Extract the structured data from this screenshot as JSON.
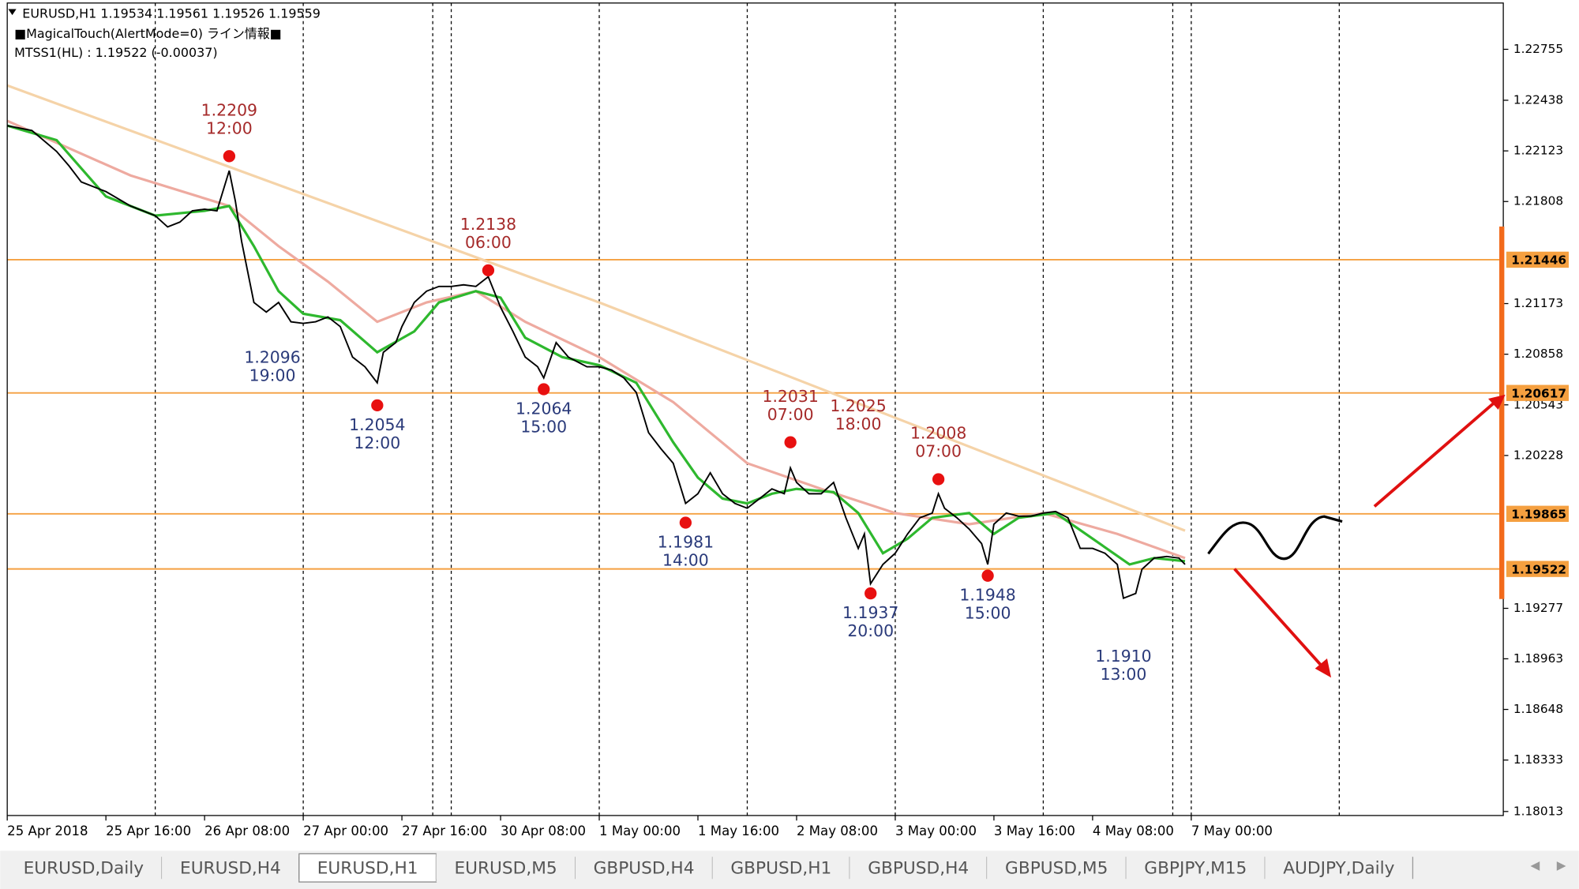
{
  "chart_data": {
    "type": "candlestick-line",
    "title": "EURUSD,H1  1.19534 1.19561 1.19526 1.19559",
    "indicators": [
      "■MagicalTouch(AlertMode=0) ライン情報■",
      "MTSS1(HL) : 1.19522 (-0.00037)"
    ],
    "xlim": [
      0,
      242.6
    ],
    "ylim": [
      1.17988,
      1.23043
    ],
    "xticks": [
      {
        "value": 0,
        "label": "25 Apr 2018"
      },
      {
        "value": 16,
        "label": "25 Apr 16:00"
      },
      {
        "value": 32,
        "label": "26 Apr 08:00"
      },
      {
        "value": 48,
        "label": "27 Apr 00:00"
      },
      {
        "value": 64,
        "label": "27 Apr 16:00"
      },
      {
        "value": 80,
        "label": "30 Apr 08:00"
      },
      {
        "value": 96,
        "label": "1 May 00:00"
      },
      {
        "value": 112,
        "label": "1 May 16:00"
      },
      {
        "value": 128,
        "label": "2 May 08:00"
      },
      {
        "value": 144,
        "label": "3 May 00:00"
      },
      {
        "value": 160,
        "label": "3 May 16:00"
      },
      {
        "value": 176,
        "label": "4 May 08:00"
      },
      {
        "value": 192,
        "label": "7 May 00:00"
      }
    ],
    "yticks": [
      1.22755,
      1.22438,
      1.22123,
      1.21808,
      1.21173,
      1.20858,
      1.20543,
      1.20228,
      1.19277,
      1.18963,
      1.18648,
      1.18333,
      1.18013
    ],
    "separators": [
      24,
      48,
      69,
      72,
      96,
      120,
      144,
      168,
      189,
      192,
      216
    ],
    "series": [
      {
        "color": "#f5d3a8",
        "x": [
          0,
          96,
          191
        ],
        "values": [
          1.2253,
          1.2118,
          1.1976
        ]
      },
      {
        "color": "#eeaaa0",
        "x": [
          0,
          20,
          36,
          44,
          52,
          60,
          68,
          76,
          84,
          96,
          108,
          120,
          132,
          144,
          156,
          168,
          180,
          191
        ],
        "values": [
          1.2231,
          1.2197,
          1.2178,
          1.2153,
          1.2131,
          1.2106,
          1.2118,
          1.2125,
          1.2106,
          1.2084,
          1.2056,
          1.2018,
          1.2002,
          1.1987,
          1.198,
          1.1987,
          1.1974,
          1.1959
        ]
      },
      {
        "color": "#2eb82e",
        "x": [
          0,
          8,
          16,
          24,
          32,
          36,
          40,
          44,
          48,
          54,
          60,
          66,
          70,
          76,
          80,
          84,
          90,
          96,
          102,
          108,
          112,
          116,
          120,
          124,
          128,
          134,
          138,
          142,
          146,
          150,
          156,
          160,
          164,
          170,
          176,
          182,
          186,
          191
        ],
        "values": [
          1.2228,
          1.2219,
          1.2184,
          1.2172,
          1.2175,
          1.2178,
          1.2153,
          1.2125,
          1.2111,
          1.2107,
          1.2087,
          1.21,
          1.2118,
          1.2125,
          1.2121,
          1.2096,
          1.2084,
          1.2079,
          1.2068,
          1.2031,
          1.2009,
          1.1996,
          1.1993,
          1.1999,
          1.2002,
          1.2,
          1.1987,
          1.1962,
          1.1971,
          1.1984,
          1.1987,
          1.1974,
          1.1984,
          1.1987,
          1.1971,
          1.1955,
          1.1959,
          1.1957
        ]
      },
      {
        "color": "#000000",
        "x": [
          0,
          4,
          8,
          10,
          12,
          16,
          20,
          24,
          26,
          28,
          30,
          32,
          34,
          36,
          37,
          38,
          40,
          42,
          44,
          46,
          48,
          50,
          52,
          54,
          56,
          58,
          60,
          61,
          63,
          64,
          66,
          68,
          70,
          72,
          74,
          76,
          78,
          80,
          82,
          84,
          86,
          87,
          89,
          91,
          94,
          96,
          98,
          100,
          102,
          104,
          106,
          108,
          110,
          112,
          114,
          116,
          118,
          120,
          122,
          124,
          126,
          127,
          128,
          130,
          132,
          134,
          136,
          138,
          139,
          140,
          142,
          144,
          146,
          148,
          150,
          151,
          152,
          154,
          156,
          158,
          159,
          160,
          162,
          164,
          166,
          168,
          170,
          172,
          174,
          176,
          178,
          180,
          181,
          183,
          184,
          186,
          188,
          190,
          191
        ],
        "values": [
          1.2228,
          1.2225,
          1.2212,
          1.2203,
          1.2193,
          1.2187,
          1.2178,
          1.2172,
          1.2165,
          1.2168,
          1.2175,
          1.2176,
          1.2175,
          1.22,
          1.2181,
          1.2156,
          1.2118,
          1.2112,
          1.2118,
          1.2106,
          1.2105,
          1.2106,
          1.2109,
          1.2103,
          1.2084,
          1.2078,
          1.2068,
          1.2087,
          1.2093,
          1.2103,
          1.2118,
          1.2125,
          1.2128,
          1.2128,
          1.2129,
          1.2128,
          1.2134,
          1.2115,
          1.21,
          1.2084,
          1.2078,
          1.2071,
          1.2093,
          1.2084,
          1.2078,
          1.2078,
          1.2076,
          1.2071,
          1.2062,
          1.2037,
          1.2027,
          1.2018,
          1.1993,
          1.1999,
          1.2012,
          1.1999,
          1.1993,
          1.199,
          1.1996,
          1.2002,
          1.1999,
          1.2015,
          1.2006,
          1.1999,
          1.1999,
          1.2006,
          1.1984,
          1.1965,
          1.1974,
          1.1943,
          1.1955,
          1.1962,
          1.1974,
          1.1984,
          1.1987,
          1.1999,
          1.199,
          1.1984,
          1.1977,
          1.1968,
          1.1955,
          1.198,
          1.1987,
          1.1985,
          1.1985,
          1.1987,
          1.1988,
          1.1984,
          1.1965,
          1.1965,
          1.1962,
          1.1955,
          1.1934,
          1.1937,
          1.1952,
          1.1959,
          1.196,
          1.1959,
          1.1955
        ]
      }
    ],
    "hlines": [
      {
        "value": 1.21446,
        "color": "#f5a040"
      },
      {
        "value": 1.20617,
        "color": "#f5a040"
      },
      {
        "value": 1.19865,
        "color": "#f5a040"
      },
      {
        "value": 1.19522,
        "color": "#f5a040"
      }
    ],
    "annotations": [
      {
        "x": 36,
        "value": 1.2209,
        "time": "12:00",
        "kind": "high",
        "marker": true
      },
      {
        "x": 43,
        "value": 1.2096,
        "time": "19:00",
        "kind": "low",
        "marker": false
      },
      {
        "x": 60,
        "value": 1.2054,
        "time": "12:00",
        "kind": "low",
        "marker": true
      },
      {
        "x": 78,
        "value": 1.2138,
        "time": "06:00",
        "kind": "high",
        "marker": true
      },
      {
        "x": 87,
        "value": 1.2064,
        "time": "15:00",
        "kind": "low",
        "marker": true
      },
      {
        "x": 110,
        "value": 1.1981,
        "time": "14:00",
        "kind": "low",
        "marker": true
      },
      {
        "x": 127,
        "value": 1.2031,
        "time": "07:00",
        "kind": "high",
        "marker": true
      },
      {
        "x": 138,
        "value": 1.2025,
        "time": "18:00",
        "kind": "high",
        "marker": false
      },
      {
        "x": 140,
        "value": 1.1937,
        "time": "20:00",
        "kind": "low",
        "marker": true
      },
      {
        "x": 151,
        "value": 1.2008,
        "time": "07:00",
        "kind": "high",
        "marker": true
      },
      {
        "x": 159,
        "value": 1.1948,
        "time": "15:00",
        "kind": "low",
        "marker": true
      },
      {
        "x": 181,
        "value": 1.191,
        "label": "1.1910",
        "time": "13:00",
        "kind": "low",
        "marker": false
      }
    ]
  },
  "tabs": {
    "items": [
      "EURUSD,Daily",
      "EURUSD,H4",
      "EURUSD,H1",
      "EURUSD,M5",
      "GBPUSD,H4",
      "GBPUSD,H1",
      "GBPUSD,H4",
      "GBPUSD,M5",
      "GBPJPY,M15",
      "AUDJPY,Daily"
    ],
    "active": 2
  }
}
